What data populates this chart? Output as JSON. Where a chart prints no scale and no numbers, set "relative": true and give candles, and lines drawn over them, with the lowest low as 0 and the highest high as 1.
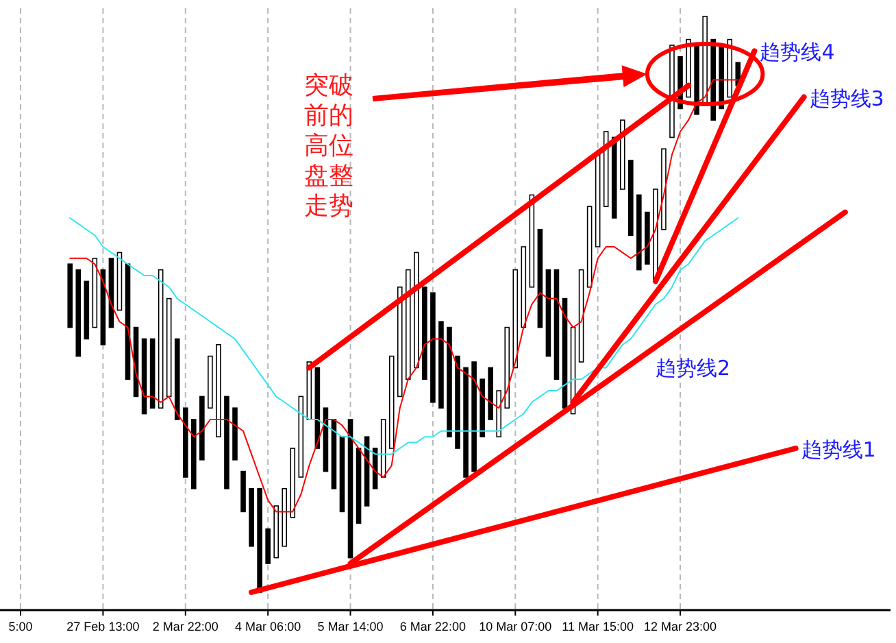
{
  "chart_data": {
    "type": "candlestick",
    "relative": true,
    "color": "#000000",
    "grid": "x",
    "categories": [
      "5:00",
      null,
      null,
      null,
      null,
      null,
      null,
      null,
      null,
      null,
      "27 Feb 13:00",
      null,
      null,
      null,
      null,
      null,
      null,
      null,
      null,
      null,
      "2 Mar 22:00",
      null,
      null,
      null,
      null,
      null,
      null,
      null,
      null,
      null,
      "4 Mar 06:00",
      null,
      null,
      null,
      null,
      null,
      null,
      null,
      null,
      null,
      "5 Mar 14:00",
      null,
      null,
      null,
      null,
      null,
      null,
      null,
      null,
      null,
      "6 Mar 22:00",
      null,
      null,
      null,
      null,
      null,
      null,
      null,
      null,
      null,
      "10 Mar 07:00",
      null,
      null,
      null,
      null,
      null,
      null,
      null,
      null,
      null,
      "11 Mar 15:00",
      null,
      null,
      null,
      null,
      null,
      null,
      null,
      null,
      null,
      "12 Mar 23:00",
      null,
      null,
      null,
      null,
      null,
      null,
      null,
      null,
      null,
      null,
      null,
      null,
      null,
      null,
      null,
      null,
      null,
      null,
      null,
      null,
      null,
      null,
      null,
      null,
      null
    ],
    "ohlc": [
      null,
      null,
      null,
      null,
      null,
      null,
      [
        0.57,
        0.57,
        0.46,
        0.46
      ],
      [
        0.56,
        0.56,
        0.41,
        0.41
      ],
      [
        0.54,
        0.54,
        0.44,
        0.44
      ],
      [
        0.46,
        0.58,
        0.46,
        0.58
      ],
      [
        0.56,
        0.56,
        0.43,
        0.43
      ],
      [
        0.58,
        0.58,
        0.46,
        0.46
      ],
      [
        0.49,
        0.59,
        0.49,
        0.59
      ],
      [
        0.57,
        0.57,
        0.37,
        0.37
      ],
      [
        0.46,
        0.46,
        0.34,
        0.34
      ],
      [
        0.44,
        0.44,
        0.31,
        0.31
      ],
      [
        0.44,
        0.44,
        0.32,
        0.32
      ],
      [
        0.32,
        0.56,
        0.32,
        0.56
      ],
      [
        0.34,
        0.51,
        0.34,
        0.51
      ],
      [
        0.44,
        0.44,
        0.3,
        0.3
      ],
      [
        0.32,
        0.32,
        0.2,
        0.2
      ],
      [
        0.3,
        0.3,
        0.18,
        0.18
      ],
      [
        0.34,
        0.34,
        0.23,
        0.23
      ],
      [
        0.32,
        0.41,
        0.32,
        0.41
      ],
      [
        0.27,
        0.43,
        0.27,
        0.43
      ],
      [
        0.34,
        0.34,
        0.18,
        0.18
      ],
      [
        0.32,
        0.32,
        0.23,
        0.23
      ],
      [
        0.21,
        0.21,
        0.14,
        0.14
      ],
      [
        0.18,
        0.18,
        0.08,
        0.08
      ],
      [
        0.18,
        0.18,
        0,
        0
      ],
      [
        0.11,
        0.11,
        0.05,
        0.05
      ],
      [
        0.06,
        0.15,
        0.06,
        0.15
      ],
      [
        0.08,
        0.18,
        0.08,
        0.18
      ],
      [
        0.13,
        0.25,
        0.13,
        0.25
      ],
      [
        0.2,
        0.34,
        0.2,
        0.34
      ],
      [
        0.3,
        0.4,
        0.3,
        0.4
      ],
      [
        0.39,
        0.39,
        0.25,
        0.25
      ],
      [
        0.32,
        0.32,
        0.21,
        0.21
      ],
      [
        0.3,
        0.3,
        0.18,
        0.18
      ],
      [
        0.27,
        0.27,
        0.14,
        0.14
      ],
      [
        0.3,
        0.3,
        0.06,
        0.06
      ],
      [
        0.25,
        0.25,
        0.12,
        0.12
      ],
      [
        0.27,
        0.27,
        0.15,
        0.15
      ],
      [
        0.25,
        0.25,
        0.18,
        0.18
      ],
      [
        0.2,
        0.3,
        0.2,
        0.3
      ],
      [
        0.25,
        0.41,
        0.25,
        0.41
      ],
      [
        0.34,
        0.53,
        0.34,
        0.53
      ],
      [
        0.37,
        0.56,
        0.37,
        0.56
      ],
      [
        0.39,
        0.59,
        0.39,
        0.59
      ],
      [
        0.53,
        0.53,
        0.37,
        0.37
      ],
      [
        0.52,
        0.52,
        0.33,
        0.33
      ],
      [
        0.47,
        0.47,
        0.32,
        0.32
      ],
      [
        0.46,
        0.46,
        0.27,
        0.27
      ],
      [
        0.41,
        0.41,
        0.25,
        0.25
      ],
      [
        0.39,
        0.39,
        0.2,
        0.2
      ],
      [
        0.4,
        0.4,
        0.21,
        0.21
      ],
      [
        0.37,
        0.37,
        0.27,
        0.27
      ],
      [
        0.39,
        0.39,
        0.3,
        0.3
      ],
      [
        0.27,
        0.35,
        0.27,
        0.35
      ],
      [
        0.32,
        0.46,
        0.32,
        0.46
      ],
      [
        0.39,
        0.56,
        0.39,
        0.56
      ],
      [
        0.46,
        0.6,
        0.46,
        0.6
      ],
      [
        0.53,
        0.69,
        0.53,
        0.69
      ],
      [
        0.63,
        0.63,
        0.46,
        0.46
      ],
      [
        0.56,
        0.56,
        0.41,
        0.41
      ],
      [
        0.56,
        0.56,
        0.37,
        0.37
      ],
      [
        0.51,
        0.51,
        0.32,
        0.32
      ],
      [
        0.31,
        0.46,
        0.31,
        0.46
      ],
      [
        0.4,
        0.56,
        0.4,
        0.56
      ],
      [
        0.53,
        0.67,
        0.53,
        0.67
      ],
      [
        0.6,
        0.76,
        0.6,
        0.76
      ],
      [
        0.67,
        0.8,
        0.67,
        0.8
      ],
      [
        0.79,
        0.79,
        0.65,
        0.65
      ],
      [
        0.7,
        0.82,
        0.7,
        0.82
      ],
      [
        0.75,
        0.75,
        0.62,
        0.62
      ],
      [
        0.69,
        0.69,
        0.56,
        0.56
      ],
      [
        0.66,
        0.66,
        0.57,
        0.57
      ],
      [
        0.54,
        0.7,
        0.54,
        0.7
      ],
      [
        0.63,
        0.77,
        0.63,
        0.77
      ],
      [
        0.79,
        0.95,
        0.79,
        0.95
      ],
      [
        0.93,
        0.93,
        0.84,
        0.84
      ],
      [
        0.86,
        0.96,
        0.86,
        0.96
      ],
      [
        0.95,
        0.95,
        0.83,
        0.83
      ],
      [
        0.85,
        1,
        0.85,
        1
      ],
      [
        0.96,
        0.96,
        0.82,
        0.82
      ],
      [
        0.95,
        0.95,
        0.84,
        0.84
      ],
      [
        0.86,
        0.96,
        0.86,
        0.96
      ],
      [
        0.92,
        0.92,
        0.88,
        0.88
      ],
      null,
      null,
      null,
      null,
      null,
      null,
      null,
      null,
      null,
      null,
      null,
      null,
      null,
      null,
      null,
      null,
      null,
      null
    ],
    "series": [
      {
        "type": "line",
        "color": "#ff0000",
        "values": [
          null,
          null,
          null,
          null,
          null,
          null,
          0.58,
          0.58,
          0.58,
          0.57,
          0.54,
          0.5,
          0.47,
          0.46,
          0.38,
          0.34,
          0.34,
          0.33,
          0.34,
          0.31,
          0.29,
          0.27,
          0.28,
          0.3,
          0.3,
          0.3,
          0.29,
          0.28,
          0.24,
          0.2,
          0.16,
          0.14,
          0.14,
          0.14,
          0.17,
          0.22,
          0.26,
          0.3,
          0.3,
          0.29,
          0.27,
          0.25,
          0.23,
          0.21,
          0.2,
          0.22,
          0.32,
          0.37,
          0.39,
          0.43,
          0.44,
          0.44,
          0.43,
          0.39,
          0.38,
          0.37,
          0.34,
          0.33,
          0.32,
          0.35,
          0.4,
          0.46,
          0.5,
          0.52,
          0.51,
          0.51,
          0.48,
          0.46,
          0.47,
          0.52,
          0.58,
          0.6,
          0.6,
          0.59,
          0.58,
          0.59,
          0.6,
          0.63,
          0.69,
          0.76,
          0.8,
          0.82,
          0.85,
          0.86,
          0.89,
          0.89,
          0.89,
          0.89,
          null,
          null,
          null,
          null,
          null,
          null,
          null,
          null,
          null,
          null,
          null,
          null,
          null,
          null,
          null,
          null,
          null,
          null
        ]
      },
      {
        "type": "line",
        "color": "#33e6ee",
        "values": [
          null,
          null,
          null,
          null,
          null,
          null,
          0.65,
          0.64,
          0.63,
          0.62,
          0.6,
          0.59,
          0.58,
          0.57,
          0.56,
          0.55,
          0.55,
          0.54,
          0.53,
          0.51,
          0.5,
          0.49,
          0.48,
          0.47,
          0.46,
          0.45,
          0.44,
          0.42,
          0.4,
          0.38,
          0.36,
          0.34,
          0.33,
          0.32,
          0.31,
          0.3,
          0.3,
          0.29,
          0.28,
          0.27,
          0.27,
          0.26,
          0.25,
          0.24,
          0.24,
          0.24,
          0.25,
          0.26,
          0.26,
          0.27,
          0.27,
          0.28,
          0.28,
          0.28,
          0.28,
          0.28,
          0.28,
          0.28,
          0.28,
          0.29,
          0.3,
          0.31,
          0.33,
          0.34,
          0.35,
          0.35,
          0.36,
          0.37,
          0.37,
          0.38,
          0.39,
          0.39,
          0.41,
          0.43,
          0.44,
          0.46,
          0.48,
          0.5,
          0.51,
          0.53,
          0.56,
          0.57,
          0.59,
          0.61,
          0.62,
          0.63,
          0.64,
          0.65,
          null,
          null,
          null,
          null,
          null,
          null,
          null,
          null,
          null,
          null,
          null,
          null,
          null,
          null,
          null,
          null,
          null,
          null
        ]
      },
      {
        "type": "line",
        "color": "#ff0000",
        "name": "趋势线1",
        "values": [
          null,
          null,
          null,
          null,
          null,
          null,
          null,
          null,
          null,
          null,
          null,
          null,
          null,
          null,
          null,
          null,
          null,
          null,
          null,
          null,
          null,
          null,
          null,
          null,
          null,
          null,
          null,
          null,
          0,
          null,
          null,
          null,
          null,
          null,
          null,
          null,
          null,
          null,
          null,
          null,
          null,
          null,
          null,
          null,
          null,
          null,
          null,
          null,
          null,
          null,
          null,
          null,
          null,
          null,
          null,
          null,
          null,
          null,
          null,
          null,
          null,
          null,
          null,
          null,
          null,
          null,
          null,
          null,
          null,
          null,
          null,
          null,
          null,
          null,
          null,
          null,
          null,
          null,
          null,
          null,
          null,
          null,
          null,
          null,
          null,
          null,
          null,
          null,
          null,
          null,
          null,
          null,
          null,
          null,
          0.25,
          null,
          null,
          null,
          null,
          null,
          null,
          null,
          null,
          null,
          null,
          null
        ]
      },
      {
        "type": "line",
        "color": "#ff0000",
        "name": "趋势线2",
        "values": [
          null,
          null,
          null,
          null,
          null,
          null,
          null,
          null,
          null,
          null,
          null,
          null,
          null,
          null,
          null,
          null,
          null,
          null,
          null,
          null,
          null,
          null,
          null,
          null,
          null,
          null,
          null,
          null,
          null,
          null,
          null,
          null,
          null,
          null,
          null,
          null,
          null,
          null,
          null,
          null,
          0.05,
          null,
          null,
          null,
          null,
          null,
          null,
          null,
          null,
          null,
          null,
          null,
          null,
          null,
          null,
          null,
          null,
          null,
          null,
          null,
          null,
          null,
          null,
          null,
          null,
          null,
          null,
          null,
          null,
          null,
          null,
          null,
          null,
          null,
          null,
          null,
          null,
          null,
          null,
          null,
          null,
          null,
          null,
          null,
          null,
          null,
          null,
          null,
          null,
          null,
          null,
          null,
          null,
          null,
          null,
          null,
          null,
          null,
          null,
          null,
          0.66,
          null,
          null,
          null,
          null,
          null
        ]
      },
      {
        "type": "line",
        "color": "#ff0000",
        "name": "趋势线3",
        "values": [
          null,
          null,
          null,
          null,
          null,
          null,
          null,
          null,
          null,
          null,
          null,
          null,
          null,
          null,
          null,
          null,
          null,
          null,
          null,
          null,
          null,
          null,
          null,
          null,
          null,
          null,
          null,
          null,
          null,
          null,
          null,
          null,
          null,
          null,
          null,
          null,
          null,
          null,
          null,
          null,
          null,
          null,
          null,
          null,
          null,
          null,
          null,
          null,
          null,
          null,
          null,
          null,
          null,
          null,
          null,
          null,
          null,
          null,
          null,
          null,
          null,
          null,
          null,
          null,
          null,
          null,
          null,
          0.33,
          null,
          null,
          null,
          null,
          null,
          null,
          null,
          null,
          null,
          null,
          null,
          null,
          null,
          null,
          null,
          null,
          null,
          null,
          null,
          null,
          null,
          null,
          null,
          null,
          null,
          null,
          null,
          0.86,
          null,
          null,
          null,
          null,
          null,
          null,
          null,
          null,
          null,
          null
        ]
      },
      {
        "type": "line",
        "color": "#ff0000",
        "name": "趋势线4",
        "values": [
          null,
          null,
          null,
          null,
          null,
          null,
          null,
          null,
          null,
          null,
          null,
          null,
          null,
          null,
          null,
          null,
          null,
          null,
          null,
          null,
          null,
          null,
          null,
          null,
          null,
          null,
          null,
          null,
          null,
          null,
          null,
          null,
          null,
          null,
          null,
          null,
          null,
          null,
          null,
          null,
          null,
          null,
          null,
          null,
          null,
          null,
          null,
          null,
          null,
          null,
          null,
          null,
          null,
          null,
          null,
          null,
          null,
          null,
          null,
          null,
          null,
          null,
          null,
          null,
          null,
          null,
          null,
          null,
          null,
          null,
          null,
          null,
          null,
          null,
          null,
          null,
          null,
          0.54,
          null,
          null,
          null,
          null,
          null,
          null,
          null,
          null,
          null,
          null,
          null,
          0.94,
          null,
          null,
          null,
          null,
          null,
          null,
          null,
          null,
          null,
          null,
          null,
          null,
          null,
          null,
          null,
          null
        ]
      },
      {
        "type": "line",
        "color": "#ff0000",
        "values": [
          null,
          null,
          null,
          null,
          null,
          null,
          null,
          null,
          null,
          null,
          null,
          null,
          null,
          null,
          null,
          null,
          null,
          null,
          null,
          null,
          null,
          null,
          null,
          null,
          null,
          null,
          null,
          null,
          null,
          null,
          null,
          null,
          null,
          null,
          null,
          0.39,
          null,
          null,
          null,
          null,
          null,
          null,
          null,
          null,
          null,
          null,
          null,
          null,
          null,
          null,
          null,
          null,
          null,
          null,
          null,
          null,
          null,
          null,
          null,
          null,
          null,
          null,
          null,
          null,
          null,
          null,
          null,
          null,
          null,
          null,
          null,
          null,
          null,
          null,
          null,
          null,
          null,
          null,
          null,
          null,
          null,
          0.88,
          null,
          null,
          null,
          null,
          null,
          null,
          null,
          null,
          null,
          null,
          null,
          null,
          null,
          null,
          null,
          null,
          null,
          null,
          null,
          null,
          null,
          null,
          null,
          null
        ]
      }
    ],
    "annotations": [
      "突破前的高位盘整走势"
    ]
  }
}
